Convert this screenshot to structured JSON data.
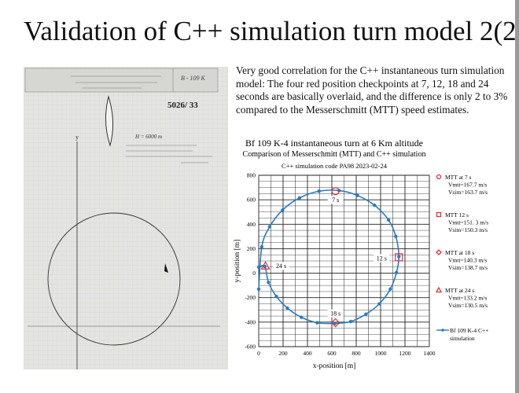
{
  "slide": {
    "title": "Validation of C++ simulation turn model 2(2)",
    "description": "Very good correlation for the C++ instantaneous turn simulation model: The four red position checkpoints at 7, 12, 18 and  24 seconds are basically overlaid, and the difference is only 2 to 3% compared to the Messerschmitt (MTT) speed estimates."
  },
  "scan": {
    "doc_number": "5026/ 33",
    "altitude_note": "H = 6000 m",
    "type_label": "B - 109 K",
    "axis_y": "y"
  },
  "colors": {
    "series": "#2b7bc0",
    "marker": "#e0303a",
    "grid": "#222222"
  },
  "chart_data": {
    "type": "scatter",
    "title": "Bf 109 K-4 instantaneous turn at 6 Km altitude",
    "subtitle": "Comparison of Messerschmitt (MTT) and C++ simulation",
    "subtitle2": "C++ simulation code PA98 2023-02-24",
    "xlabel": "x-position [m]",
    "ylabel": "y-position [m]",
    "xlim": [
      0,
      1400
    ],
    "ylim": [
      -600,
      800
    ],
    "xticks": [
      0,
      200,
      400,
      600,
      800,
      1000,
      1200,
      1400
    ],
    "yticks": [
      -600,
      -400,
      -200,
      0,
      200,
      400,
      600,
      800
    ],
    "grid": true,
    "legend_position": "right",
    "series": [
      {
        "name": "Bf 109 K-4 C++ simulation",
        "x": [
          0,
          25,
          90,
          195,
          335,
          495,
          660,
          810,
          950,
          1065,
          1125,
          1150,
          1130,
          1080,
          990,
          880,
          755,
          625,
          480,
          350,
          235,
          145,
          80,
          50,
          0
        ],
        "y": [
          -130,
          215,
          380,
          515,
          615,
          670,
          675,
          635,
          555,
          435,
          300,
          135,
          5,
          -130,
          -250,
          -335,
          -395,
          -410,
          -405,
          -360,
          -285,
          -190,
          -75,
          55,
          50
        ]
      }
    ],
    "checkpoints": [
      {
        "label": "7 s",
        "marker": "circle",
        "x": 630,
        "y": 670,
        "legend": [
          "MTT at 7 s",
          "Vmtt=167.7 m/s",
          "Vsim=163.7 m/s"
        ]
      },
      {
        "label": "12 s",
        "marker": "square",
        "x": 1150,
        "y": 130,
        "legend": [
          "MTT 12 s",
          "Vmtt=151. 3 m/s",
          "Vsim=150.3 m/s"
        ]
      },
      {
        "label": "18 s",
        "marker": "diamond",
        "x": 630,
        "y": -405,
        "legend": [
          "MTT at 18 s",
          "Vmtt=140.3 m/s",
          "Vsim=138.7 m/s"
        ]
      },
      {
        "label": "24 s",
        "marker": "triangle",
        "x": 55,
        "y": 60,
        "legend": [
          "MTT at 24 s",
          "Vmtt=133.2 m/s",
          "Vsim=130.5 m/s"
        ]
      }
    ],
    "series_legend": [
      "Bf 109 K-4 C++",
      "simulation"
    ]
  }
}
